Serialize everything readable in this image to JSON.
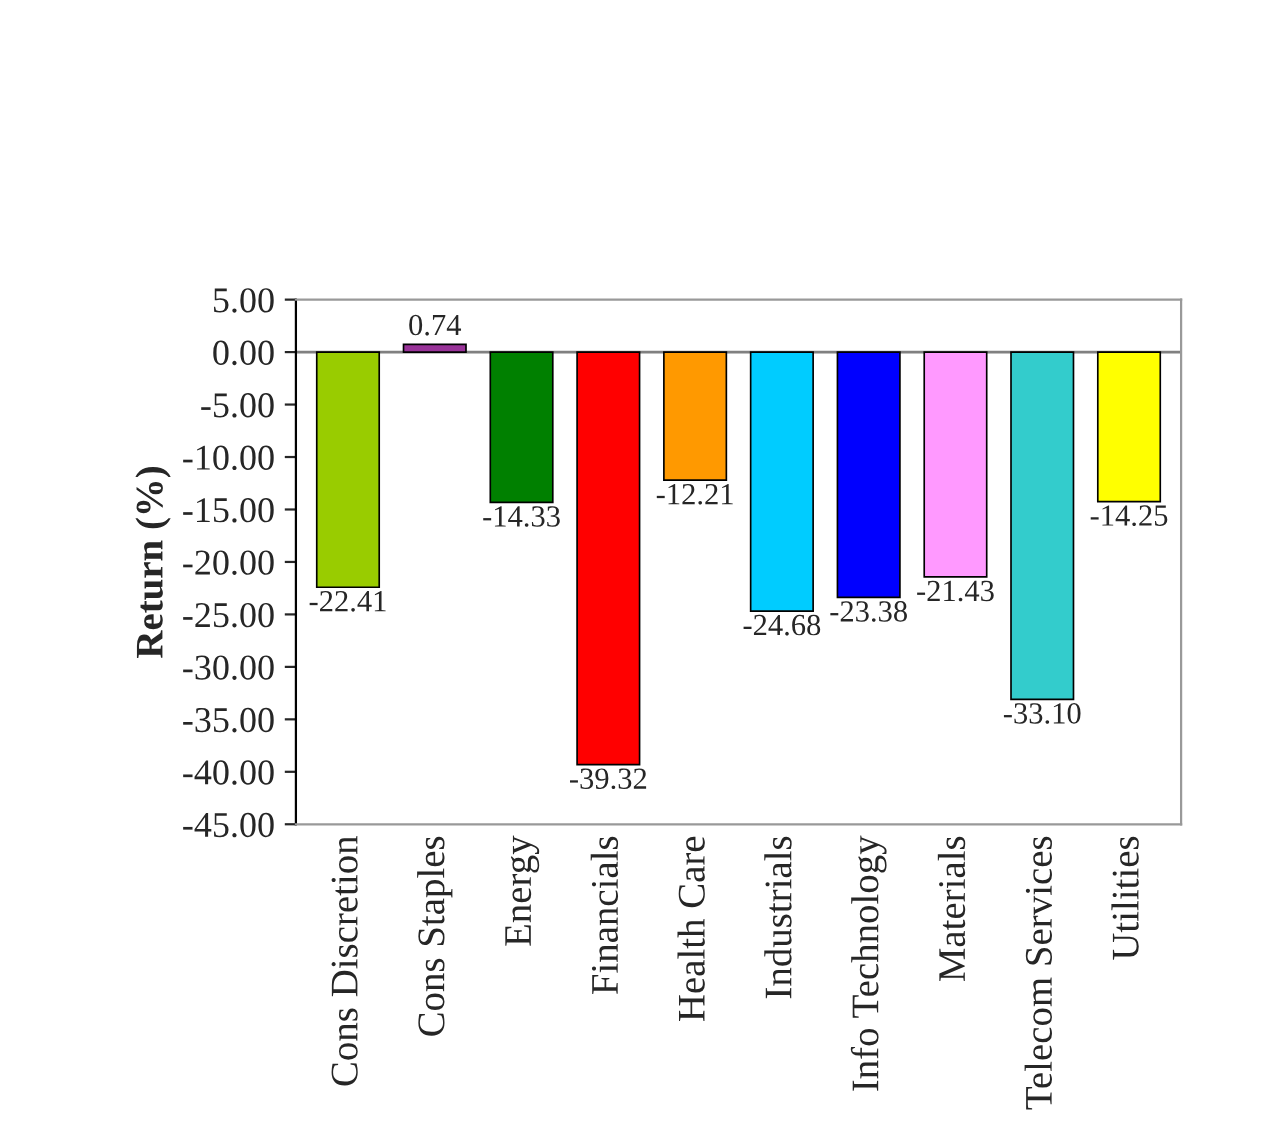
{
  "chart_data": {
    "type": "bar",
    "ylabel": "Return (%)",
    "categories": [
      "Cons Discretion",
      "Cons Staples",
      "Energy",
      "Financials",
      "Health Care",
      "Industrials",
      "Info Technology",
      "Materials",
      "Telecom Services",
      "Utilities"
    ],
    "values": [
      -22.41,
      0.74,
      -14.33,
      -39.32,
      -12.21,
      -24.68,
      -23.38,
      -21.43,
      -33.1,
      -14.25
    ],
    "value_labels": [
      "-22.41",
      "0.74",
      "-14.33",
      "-39.32",
      "-12.21",
      "-24.68",
      "-23.38",
      "-21.43",
      "-33.10",
      "-14.25"
    ],
    "colors": [
      "#99cc00",
      "#993399",
      "#008000",
      "#ff0000",
      "#ff9900",
      "#00ccff",
      "#0000ff",
      "#ff99ff",
      "#33cccc",
      "#ffff00"
    ],
    "ylim": [
      -45,
      5
    ],
    "yticks": [
      {
        "value": 5,
        "label": "5.00"
      },
      {
        "value": 0,
        "label": "0.00"
      },
      {
        "value": -5,
        "label": "-5.00"
      },
      {
        "value": -10,
        "label": "-10.00"
      },
      {
        "value": -15,
        "label": "-15.00"
      },
      {
        "value": -20,
        "label": "-20.00"
      },
      {
        "value": -25,
        "label": "-25.00"
      },
      {
        "value": -30,
        "label": "-30.00"
      },
      {
        "value": -35,
        "label": "-35.00"
      },
      {
        "value": -40,
        "label": "-40.00"
      },
      {
        "value": -45,
        "label": "-45.00"
      }
    ],
    "ref_lines": [
      {
        "axis": "y",
        "value": 0,
        "color": "#808080"
      }
    ],
    "grid": false,
    "legend": false
  }
}
